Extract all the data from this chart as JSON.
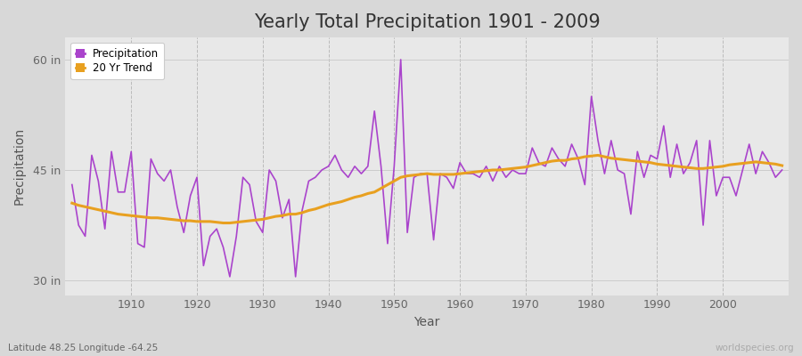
{
  "title": "Yearly Total Precipitation 1901 - 2009",
  "xlabel": "Year",
  "ylabel": "Precipitation",
  "fig_bg_color": "#d8d8d8",
  "plot_bg_color": "#e8e8e8",
  "precip_color": "#aa44cc",
  "trend_color": "#e8a020",
  "ylim_min": 28,
  "ylim_max": 63,
  "yticks": [
    30,
    45,
    60
  ],
  "ytick_labels": [
    "30 in",
    "45 in",
    "60 in"
  ],
  "years": [
    1901,
    1902,
    1903,
    1904,
    1905,
    1906,
    1907,
    1908,
    1909,
    1910,
    1911,
    1912,
    1913,
    1914,
    1915,
    1916,
    1917,
    1918,
    1919,
    1920,
    1921,
    1922,
    1923,
    1924,
    1925,
    1926,
    1927,
    1928,
    1929,
    1930,
    1931,
    1932,
    1933,
    1934,
    1935,
    1936,
    1937,
    1938,
    1939,
    1940,
    1941,
    1942,
    1943,
    1944,
    1945,
    1946,
    1947,
    1948,
    1949,
    1950,
    1951,
    1952,
    1953,
    1954,
    1955,
    1956,
    1957,
    1958,
    1959,
    1960,
    1961,
    1962,
    1963,
    1964,
    1965,
    1966,
    1967,
    1968,
    1969,
    1970,
    1971,
    1972,
    1973,
    1974,
    1975,
    1976,
    1977,
    1978,
    1979,
    1980,
    1981,
    1982,
    1983,
    1984,
    1985,
    1986,
    1987,
    1988,
    1989,
    1990,
    1991,
    1992,
    1993,
    1994,
    1995,
    1996,
    1997,
    1998,
    1999,
    2000,
    2001,
    2002,
    2003,
    2004,
    2005,
    2006,
    2007,
    2008,
    2009
  ],
  "precip": [
    43.0,
    37.5,
    36.0,
    47.0,
    43.5,
    37.0,
    47.5,
    42.0,
    42.0,
    47.5,
    35.0,
    34.5,
    46.5,
    44.5,
    43.5,
    45.0,
    40.0,
    36.5,
    41.5,
    44.0,
    32.0,
    36.0,
    37.0,
    34.5,
    30.5,
    36.0,
    44.0,
    43.0,
    38.0,
    36.5,
    45.0,
    43.5,
    38.5,
    41.0,
    30.5,
    39.5,
    43.5,
    44.0,
    45.0,
    45.5,
    47.0,
    45.0,
    44.0,
    45.5,
    44.5,
    45.5,
    53.0,
    45.5,
    35.0,
    45.5,
    60.0,
    36.5,
    44.0,
    44.5,
    44.5,
    35.5,
    44.5,
    44.0,
    42.5,
    46.0,
    44.5,
    44.5,
    44.0,
    45.5,
    43.5,
    45.5,
    44.0,
    45.0,
    44.5,
    44.5,
    48.0,
    46.0,
    45.5,
    48.0,
    46.5,
    45.5,
    48.5,
    46.5,
    43.0,
    55.0,
    49.0,
    44.5,
    49.0,
    45.0,
    44.5,
    39.0,
    47.5,
    44.0,
    47.0,
    46.5,
    51.0,
    44.0,
    48.5,
    44.5,
    46.0,
    49.0,
    37.5,
    49.0,
    41.5,
    44.0,
    44.0,
    41.5,
    45.0,
    48.5,
    44.5,
    47.5,
    46.0,
    44.0,
    45.0
  ],
  "trend": [
    40.5,
    40.2,
    40.0,
    39.8,
    39.6,
    39.4,
    39.2,
    39.0,
    38.9,
    38.8,
    38.7,
    38.6,
    38.5,
    38.5,
    38.4,
    38.3,
    38.2,
    38.1,
    38.1,
    38.0,
    38.0,
    38.0,
    37.9,
    37.8,
    37.8,
    37.9,
    38.0,
    38.1,
    38.2,
    38.3,
    38.5,
    38.7,
    38.8,
    39.0,
    39.0,
    39.2,
    39.5,
    39.7,
    40.0,
    40.3,
    40.5,
    40.7,
    41.0,
    41.3,
    41.5,
    41.8,
    42.0,
    42.5,
    43.0,
    43.5,
    44.0,
    44.2,
    44.3,
    44.4,
    44.5,
    44.4,
    44.4,
    44.4,
    44.4,
    44.5,
    44.6,
    44.7,
    44.8,
    44.9,
    45.0,
    45.0,
    45.1,
    45.2,
    45.3,
    45.4,
    45.6,
    45.8,
    46.0,
    46.2,
    46.3,
    46.3,
    46.5,
    46.6,
    46.8,
    46.9,
    47.0,
    46.8,
    46.6,
    46.5,
    46.4,
    46.3,
    46.2,
    46.1,
    46.0,
    45.8,
    45.7,
    45.6,
    45.5,
    45.4,
    45.3,
    45.2,
    45.2,
    45.3,
    45.4,
    45.5,
    45.7,
    45.8,
    45.9,
    46.0,
    46.1,
    46.0,
    45.9,
    45.8,
    45.6
  ],
  "watermark": "worldspecies.org",
  "footnote": "Latitude 48.25 Longitude -64.25",
  "legend_precip": "Precipitation",
  "legend_trend": "20 Yr Trend"
}
